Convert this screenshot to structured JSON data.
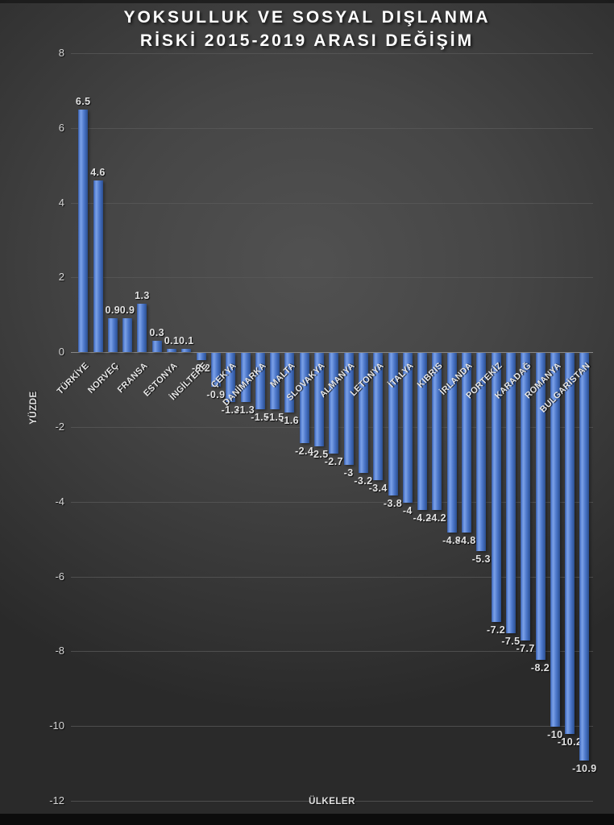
{
  "chart_data": {
    "type": "bar",
    "title": "YOKSULLUK VE SOSYAL DIŞLANMA RİSKİ 2015-2019 ARASI DEĞİŞİM",
    "title_lines": [
      "YOKSULLUK VE SOSYAL DIŞLANMA",
      "RİSKİ 2015-2019 ARASI DEĞİŞİM"
    ],
    "xlabel": "ÜLKELER",
    "ylabel": "YÜZDE",
    "ylim": [
      -12,
      8
    ],
    "y_ticks": [
      8,
      6,
      4,
      2,
      0,
      -2,
      -4,
      -6,
      -8,
      -10,
      -12
    ],
    "grid": true,
    "legend": "none",
    "bar_color": "#4472C4",
    "background_color": "#3f3f3f",
    "gridline_color": "#5a5a5a",
    "text_color": "#e6e6e6",
    "categories": [
      "TÜRKİYE",
      "",
      "NORVEÇ",
      "",
      "FRANSA",
      "",
      "ESTONYA",
      "",
      "İNGİLTERE",
      "",
      "ÇEKYA",
      "",
      "DANİMARKA",
      "",
      "MALTA",
      "",
      "SLOVAKYA",
      "",
      "ALMANYA",
      "",
      "LETONYA",
      "",
      "İTALYA",
      "",
      "KIBRIS",
      "",
      "İRLANDA",
      "",
      "PORTEKİZ",
      "",
      "KARADAĞ",
      "",
      "ROMANYA",
      "",
      "BULGARİSTAN"
    ],
    "values": [
      6.5,
      4.6,
      0.9,
      0.9,
      1.3,
      0.3,
      0.1,
      0.1,
      -0.2,
      -0.9,
      -1.3,
      -1.3,
      -1.5,
      -1.5,
      -1.6,
      -2.4,
      -2.5,
      -2.7,
      -3,
      -3.2,
      -3.4,
      -3.8,
      -4,
      -4.2,
      -4.2,
      -4.8,
      -4.8,
      -5.3,
      -7.2,
      -7.5,
      -7.7,
      -8.2,
      -10,
      -10.2,
      -10.9
    ],
    "value_labels": [
      "6.5",
      "4.6",
      "0.9",
      "0.9",
      "1.3",
      "0.3",
      "0.1",
      "0.1",
      "-0.2",
      "-0.9",
      "-1.3",
      "-1.3",
      "-1.5",
      "-1.5",
      "-1.6",
      "-2.4",
      "-2.5",
      "-2.7",
      "-3",
      "-3.2",
      "-3.4",
      "-3.8",
      "-4",
      "-4.2",
      "-4.2",
      "-4.8",
      "-4.8",
      "-5.3",
      "-7.2",
      "-7.5",
      "-7.7",
      "-8.2",
      "-10",
      "-10.2",
      "-10.9"
    ]
  }
}
